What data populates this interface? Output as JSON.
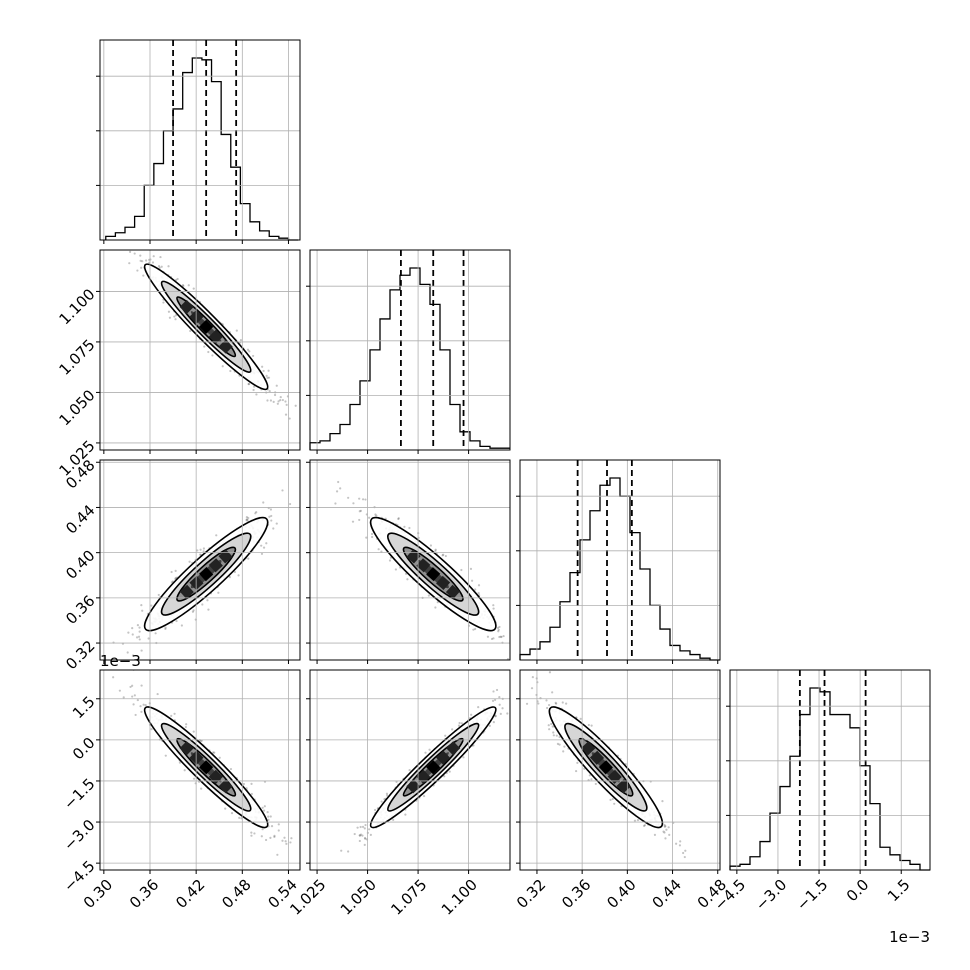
{
  "chart_data": {
    "type": "corner",
    "parameters": [
      {
        "range": [
          0.295,
          0.555
        ],
        "ticks": [
          0.3,
          0.36,
          0.42,
          0.48,
          0.54
        ],
        "tick_labels": [
          "0.30",
          "0.36",
          "0.42",
          "0.48",
          "0.54"
        ],
        "offset_text": ""
      },
      {
        "range": [
          1.0215,
          1.1205
        ],
        "ticks": [
          1.025,
          1.05,
          1.075,
          1.1
        ],
        "tick_labels": [
          "1.025",
          "1.050",
          "1.075",
          "1.100"
        ],
        "offset_text": ""
      },
      {
        "range": [
          0.305,
          0.482
        ],
        "ticks": [
          0.32,
          0.36,
          0.4,
          0.44,
          0.48
        ],
        "tick_labels": [
          "0.32",
          "0.36",
          "0.40",
          "0.44",
          "0.48"
        ],
        "offset_text": ""
      },
      {
        "range": [
          -4.75,
          2.55
        ],
        "ticks": [
          -4.5,
          -3.0,
          -1.5,
          0.0,
          1.5
        ],
        "tick_labels": [
          "−4.5",
          "−3.0",
          "−1.5",
          "0.0",
          "1.5"
        ],
        "offset_text": "1e−3"
      }
    ],
    "histograms": [
      {
        "edges_start": 0.3025,
        "bin_width": 0.0125,
        "counts": [
          2,
          4,
          7,
          13,
          30,
          42,
          60,
          72,
          92,
          100,
          99,
          87,
          58,
          40,
          20,
          10,
          5,
          2,
          1,
          0
        ],
        "quantiles": [
          0.39,
          0.433,
          0.472
        ]
      },
      {
        "edges_start": 1.0215,
        "bin_width": 0.00495,
        "counts": [
          4,
          5,
          9,
          14,
          25,
          38,
          55,
          72,
          88,
          96,
          100,
          91,
          80,
          55,
          25,
          10,
          5,
          2,
          1,
          1
        ],
        "quantiles": [
          1.0665,
          1.0825,
          1.0975
        ]
      },
      {
        "edges_start": 0.305,
        "bin_width": 0.00885,
        "counts": [
          3,
          6,
          10,
          18,
          32,
          48,
          66,
          82,
          96,
          100,
          90,
          70,
          50,
          30,
          17,
          8,
          5,
          3,
          1,
          0
        ],
        "quantiles": [
          0.356,
          0.382,
          0.404
        ]
      },
      {
        "edges_start": -4.75,
        "bin_width": 0.365,
        "counts": [
          2,
          3,
          7,
          15,
          30,
          44,
          60,
          82,
          96,
          94,
          82,
          82,
          75,
          55,
          35,
          12,
          8,
          5,
          3,
          0
        ],
        "quantiles": [
          -2.2,
          -1.3,
          0.2
        ]
      }
    ],
    "correlations": {
      "1_0": -0.96,
      "2_0": 0.92,
      "2_1": -0.92,
      "3_0": -0.95,
      "3_1": 0.96,
      "3_2": -0.93
    },
    "x_offset_text": "1e−3",
    "grid": true
  }
}
